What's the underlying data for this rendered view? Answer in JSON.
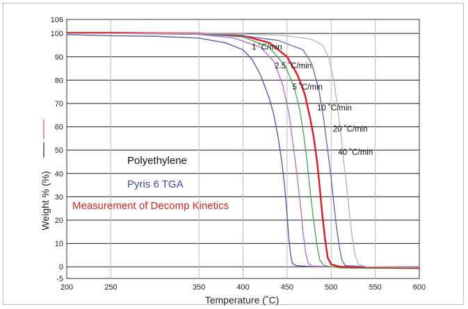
{
  "chart_data": {
    "type": "line",
    "xlabel": "Temperature (˚C)",
    "ylabel": "Weight % (%)",
    "xlim": [
      200,
      600
    ],
    "ylim": [
      -5,
      106
    ],
    "x_ticks": [
      "200",
      "250",
      "350",
      "400",
      "450",
      "500",
      "550",
      "600"
    ],
    "x_tick_values": [
      200,
      250,
      350,
      400,
      450,
      500,
      550,
      600
    ],
    "y_ticks": [
      "-5",
      "0",
      "10",
      "20",
      "30",
      "40",
      "50",
      "60",
      "70",
      "80",
      "90",
      "100",
      "106"
    ],
    "y_tick_values": [
      -5,
      0,
      10,
      20,
      30,
      40,
      50,
      60,
      70,
      80,
      90,
      100,
      106
    ],
    "grid": true,
    "text_labels": [
      {
        "text": "Polyethylene",
        "color": "#111111"
      },
      {
        "text": "Pyris 6 TGA",
        "color": "#3a47a8"
      },
      {
        "text": "Measurement of Decomp Kinetics",
        "color": "#e02020"
      }
    ],
    "series": [
      {
        "annotation": "1 ˚C/min",
        "color": "#4a4fb0",
        "width": 1.3,
        "points": [
          [
            200,
            99.5
          ],
          [
            250,
            99
          ],
          [
            300,
            98.8
          ],
          [
            350,
            98
          ],
          [
            380,
            96
          ],
          [
            400,
            93
          ],
          [
            410,
            89
          ],
          [
            420,
            82
          ],
          [
            430,
            72
          ],
          [
            435,
            65
          ],
          [
            440,
            55
          ],
          [
            444,
            45
          ],
          [
            447,
            35
          ],
          [
            450,
            22
          ],
          [
            452,
            12
          ],
          [
            454,
            5
          ],
          [
            456,
            1.5
          ],
          [
            460,
            0.5
          ],
          [
            480,
            0
          ],
          [
            600,
            0
          ]
        ],
        "label_at": [
          410,
          93
        ]
      },
      {
        "annotation": "2.5 ˚C/min",
        "color": "#b567c8",
        "width": 1.3,
        "points": [
          [
            200,
            100.5
          ],
          [
            250,
            100
          ],
          [
            350,
            99.6
          ],
          [
            390,
            98
          ],
          [
            420,
            94
          ],
          [
            435,
            88
          ],
          [
            445,
            78
          ],
          [
            452,
            66
          ],
          [
            457,
            52
          ],
          [
            461,
            40
          ],
          [
            465,
            27
          ],
          [
            468,
            15
          ],
          [
            471,
            6
          ],
          [
            474,
            1.5
          ],
          [
            478,
            0.3
          ],
          [
            500,
            0
          ],
          [
            600,
            -0.3
          ]
        ],
        "label_at": [
          436,
          85
        ]
      },
      {
        "annotation": "5 ˚C/min",
        "color": "#42a842",
        "width": 1.3,
        "points": [
          [
            200,
            100.5
          ],
          [
            250,
            100.5
          ],
          [
            350,
            99.8
          ],
          [
            400,
            98.5
          ],
          [
            430,
            94
          ],
          [
            448,
            86
          ],
          [
            458,
            77
          ],
          [
            464,
            68
          ],
          [
            469,
            56
          ],
          [
            473,
            44
          ],
          [
            476,
            33
          ],
          [
            480,
            20
          ],
          [
            484,
            9
          ],
          [
            487,
            3
          ],
          [
            492,
            0.5
          ],
          [
            510,
            -0.5
          ],
          [
            600,
            -0.8
          ]
        ],
        "label_at": [
          456,
          76
        ]
      },
      {
        "annotation": "10 ˚C/min",
        "color": "#e8161b",
        "width": 2.4,
        "points": [
          [
            200,
            100.3
          ],
          [
            250,
            100.3
          ],
          [
            350,
            100
          ],
          [
            400,
            99
          ],
          [
            430,
            96
          ],
          [
            450,
            90
          ],
          [
            462,
            82
          ],
          [
            470,
            74
          ],
          [
            476,
            64
          ],
          [
            480,
            56
          ],
          [
            484,
            45
          ],
          [
            487,
            34
          ],
          [
            490,
            22
          ],
          [
            493,
            12
          ],
          [
            496,
            4
          ],
          [
            500,
            1
          ],
          [
            510,
            0
          ],
          [
            600,
            -0.5
          ]
        ],
        "label_at": [
          484,
          67
        ]
      },
      {
        "annotation": "20 ˚C/min",
        "color": "#5a60b5",
        "width": 1.3,
        "points": [
          [
            200,
            100
          ],
          [
            300,
            100
          ],
          [
            350,
            99.8
          ],
          [
            400,
            99
          ],
          [
            440,
            97
          ],
          [
            468,
            93
          ],
          [
            478,
            87
          ],
          [
            486,
            76
          ],
          [
            492,
            62
          ],
          [
            496,
            50
          ],
          [
            500,
            38
          ],
          [
            503,
            27
          ],
          [
            506,
            17
          ],
          [
            509,
            9
          ],
          [
            512,
            3
          ],
          [
            516,
            0.5
          ],
          [
            540,
            0
          ],
          [
            600,
            -0.3
          ]
        ],
        "label_at": [
          502,
          58
        ]
      },
      {
        "annotation": "40 ˚C/min",
        "color": "#b4b4b4",
        "width": 1.3,
        "points": [
          [
            200,
            100
          ],
          [
            300,
            100
          ],
          [
            400,
            99.8
          ],
          [
            450,
            99
          ],
          [
            478,
            97.5
          ],
          [
            490,
            95
          ],
          [
            497,
            90
          ],
          [
            503,
            80
          ],
          [
            507,
            69
          ],
          [
            511,
            57
          ],
          [
            514,
            46
          ],
          [
            518,
            33
          ],
          [
            521,
            22
          ],
          [
            524,
            12
          ],
          [
            527,
            5
          ],
          [
            531,
            1
          ],
          [
            540,
            0
          ],
          [
            600,
            -0.2
          ]
        ],
        "label_at": [
          508,
          48
        ]
      }
    ]
  }
}
